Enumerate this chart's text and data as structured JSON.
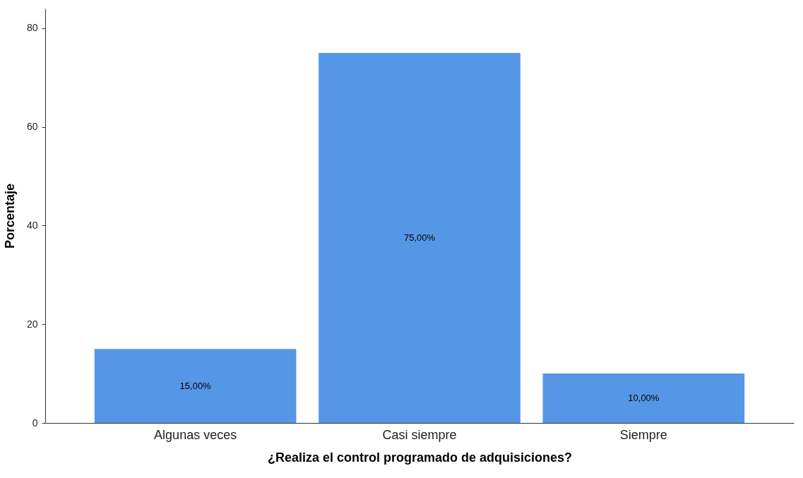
{
  "chart_data": {
    "type": "bar",
    "xlabel": "¿Realiza el control programado de adquisiciones?",
    "ylabel": "Porcentaje",
    "categories": [
      "Algunas veces",
      "Casi siempre",
      "Siempre"
    ],
    "values": [
      15,
      75,
      10
    ],
    "value_labels": [
      "15,00%",
      "75,00%",
      "10,00%"
    ],
    "color": "#5596e6",
    "ylim": [
      0,
      84
    ],
    "yticks": [
      0,
      20,
      40,
      60,
      80
    ],
    "grid": false
  }
}
